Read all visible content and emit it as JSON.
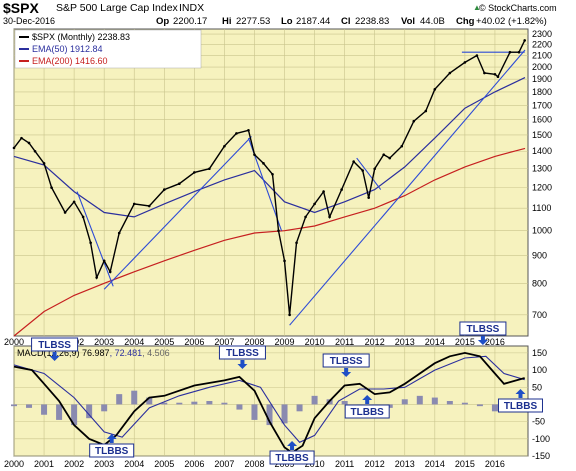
{
  "header": {
    "symbol": "$SPX",
    "name": "S&P 500 Large Cap Index",
    "exchange": "INDX",
    "date": "30-Dec-2016",
    "op_label": "Op",
    "op": "2200.17",
    "hi_label": "Hi",
    "hi": "2277.53",
    "lo_label": "Lo",
    "lo": "2187.44",
    "cl_label": "Cl",
    "cl": "2238.83",
    "vol_label": "Vol",
    "vol": "44.0B",
    "chg_label": "Chg",
    "chg": "+40.02 (+1.82%)",
    "watermark": "© StockCharts.com",
    "watermark_arrow": "▲"
  },
  "legend": [
    {
      "label": "$SPX (Monthly) 2238.83",
      "color": "#000000"
    },
    {
      "label": "EMA(50) 1912.84",
      "color": "#2b2f9e"
    },
    {
      "label": "EMA(200) 1416.60",
      "color": "#c62020"
    }
  ],
  "macd_label": {
    "prefix": "MACD",
    "params": "12,26,9",
    "macd": "76.987",
    "signal": "72.481",
    "hist": "4.506"
  },
  "colors": {
    "panel_bg": "#f6f2be",
    "price": "#000000",
    "ema50": "#2b2f9e",
    "ema200": "#c62020",
    "trendline": "#2d4bd6",
    "histogram": "#8a8ab0",
    "box_fill": "#ffffff",
    "box_border": "#1b2f8f",
    "box_text": "#1b2f8f",
    "arrow": "#1f4fc6"
  },
  "chart_data": [
    {
      "type": "line",
      "title": "S&P 500 Large Cap Index",
      "scale": "log",
      "ylim": [
        640,
        2350
      ],
      "x_range": [
        2000,
        2017.1
      ],
      "x_ticks": [
        "2000",
        "2001",
        "2002",
        "2003",
        "2004",
        "2005",
        "2006",
        "2007",
        "2008",
        "2009",
        "2010",
        "2011",
        "2012",
        "2013",
        "2014",
        "2015",
        "2016"
      ],
      "y_ticks": [
        700,
        800,
        900,
        1000,
        1100,
        1200,
        1300,
        1400,
        1500,
        1600,
        1700,
        1800,
        1900,
        2000,
        2100,
        2200,
        2300
      ],
      "y_tick_labels": [
        "700",
        "800",
        "900",
        "1000",
        "1100",
        "1200",
        "1300",
        "1400",
        "1500",
        "1600",
        "1700",
        "1800",
        "1900",
        "2000",
        "2100",
        "2200",
        "2300"
      ],
      "grid": true,
      "legend_position": "top-left",
      "series": [
        {
          "name": "$SPX (Monthly)",
          "x": [
            2000.0,
            2000.25,
            2000.5,
            2000.7,
            2001.0,
            2001.25,
            2001.7,
            2002.0,
            2002.3,
            2002.55,
            2002.75,
            2003.0,
            2003.2,
            2003.5,
            2004.0,
            2004.5,
            2005.0,
            2005.5,
            2006.0,
            2006.5,
            2007.0,
            2007.4,
            2007.8,
            2008.0,
            2008.3,
            2008.6,
            2008.8,
            2009.0,
            2009.17,
            2009.4,
            2009.7,
            2010.0,
            2010.3,
            2010.5,
            2010.9,
            2011.3,
            2011.6,
            2011.8,
            2012.0,
            2012.3,
            2012.5,
            2012.9,
            2013.3,
            2013.7,
            2014.0,
            2014.5,
            2015.0,
            2015.4,
            2015.65,
            2016.0,
            2016.1,
            2016.5,
            2016.8,
            2016.99
          ],
          "y": [
            1420,
            1480,
            1450,
            1400,
            1330,
            1200,
            1080,
            1130,
            1060,
            950,
            820,
            880,
            840,
            990,
            1120,
            1110,
            1190,
            1220,
            1280,
            1300,
            1430,
            1510,
            1530,
            1380,
            1330,
            1270,
            1000,
            880,
            700,
            950,
            1060,
            1120,
            1180,
            1060,
            1190,
            1340,
            1290,
            1150,
            1300,
            1380,
            1360,
            1430,
            1590,
            1660,
            1820,
            1950,
            2040,
            2100,
            1950,
            1940,
            1920,
            2130,
            2130,
            2239
          ]
        },
        {
          "name": "EMA(50)",
          "x": [
            2000.0,
            2001.0,
            2002.0,
            2003.0,
            2004.0,
            2005.0,
            2006.0,
            2007.0,
            2008.0,
            2009.0,
            2010.0,
            2011.0,
            2012.0,
            2013.0,
            2014.0,
            2015.0,
            2016.0,
            2017.0
          ],
          "y": [
            1370,
            1320,
            1180,
            1080,
            1060,
            1120,
            1180,
            1240,
            1290,
            1130,
            1080,
            1130,
            1190,
            1310,
            1480,
            1680,
            1800,
            1913
          ]
        },
        {
          "name": "EMA(200)",
          "x": [
            2000.0,
            2001.0,
            2002.0,
            2003.0,
            2004.0,
            2005.0,
            2006.0,
            2007.0,
            2008.0,
            2009.0,
            2010.0,
            2011.0,
            2012.0,
            2013.0,
            2014.0,
            2015.0,
            2016.0,
            2017.0
          ],
          "y": [
            640,
            710,
            760,
            800,
            840,
            880,
            920,
            960,
            990,
            1000,
            1020,
            1060,
            1100,
            1160,
            1240,
            1310,
            1370,
            1417
          ]
        }
      ],
      "trendlines": [
        {
          "x": [
            2002.1,
            2003.3
          ],
          "y": [
            1180,
            790
          ]
        },
        {
          "x": [
            2003.0,
            2007.9
          ],
          "y": [
            780,
            1490
          ]
        },
        {
          "x": [
            2007.8,
            2008.9
          ],
          "y": [
            1480,
            1000
          ]
        },
        {
          "x": [
            2009.17,
            2017.0
          ],
          "y": [
            670,
            2150
          ]
        },
        {
          "x": [
            2011.4,
            2012.2
          ],
          "y": [
            1360,
            1190
          ]
        },
        {
          "x": [
            2014.9,
            2016.99
          ],
          "y": [
            2130,
            2130
          ]
        }
      ]
    },
    {
      "type": "line",
      "title": "MACD(12,26,9)",
      "ylim": [
        -150,
        170
      ],
      "x_ticks": [
        "2000",
        "2001",
        "2002",
        "2003",
        "2004",
        "2005",
        "2006",
        "2007",
        "2008",
        "2009",
        "2010",
        "2011",
        "2012",
        "2013",
        "2014",
        "2015",
        "2016"
      ],
      "y_ticks": [
        -150,
        -100,
        -50,
        0,
        50,
        100,
        150
      ],
      "y_tick_labels": [
        "-150",
        "-100",
        "-50",
        "0",
        "50",
        "100",
        "150"
      ],
      "series": [
        {
          "name": "MACD",
          "x": [
            2000.0,
            2000.6,
            2001.0,
            2001.5,
            2002.0,
            2002.5,
            2003.0,
            2003.4,
            2004.0,
            2004.5,
            2005.0,
            2006.0,
            2007.0,
            2007.5,
            2008.0,
            2008.5,
            2009.0,
            2009.25,
            2009.6,
            2010.0,
            2010.5,
            2011.0,
            2011.5,
            2012.0,
            2012.5,
            2013.0,
            2014.0,
            2014.5,
            2015.0,
            2015.5,
            2016.0,
            2016.3,
            2016.99
          ],
          "y": [
            110,
            100,
            60,
            10,
            -60,
            -100,
            -118,
            -90,
            -20,
            20,
            25,
            55,
            70,
            80,
            40,
            -50,
            -125,
            -140,
            -120,
            -40,
            10,
            55,
            60,
            30,
            35,
            60,
            120,
            140,
            150,
            140,
            90,
            60,
            77
          ]
        },
        {
          "name": "Signal",
          "x": [
            2000.0,
            2001.0,
            2002.0,
            2003.0,
            2003.6,
            2004.5,
            2005.5,
            2006.5,
            2007.5,
            2008.2,
            2009.0,
            2009.5,
            2010.0,
            2010.8,
            2011.5,
            2012.3,
            2013.0,
            2014.0,
            2015.0,
            2015.7,
            2016.3,
            2016.99
          ],
          "y": [
            115,
            90,
            20,
            -80,
            -95,
            -10,
            25,
            50,
            70,
            50,
            -60,
            -110,
            -90,
            10,
            45,
            45,
            50,
            100,
            135,
            140,
            90,
            72
          ]
        },
        {
          "name": "Histogram",
          "type": "bar",
          "x": [
            2000.0,
            2000.5,
            2001.0,
            2001.5,
            2002.0,
            2002.5,
            2003.0,
            2003.5,
            2004.0,
            2004.5,
            2005.0,
            2005.5,
            2006.0,
            2006.5,
            2007.0,
            2007.5,
            2008.0,
            2008.5,
            2009.0,
            2009.5,
            2010.0,
            2010.5,
            2011.0,
            2011.5,
            2012.0,
            2012.5,
            2013.0,
            2013.5,
            2014.0,
            2014.5,
            2015.0,
            2015.5,
            2016.0,
            2016.5,
            2016.99
          ],
          "y": [
            -5,
            -10,
            -30,
            -45,
            -60,
            -40,
            -20,
            30,
            40,
            20,
            5,
            5,
            8,
            10,
            5,
            -15,
            -45,
            -60,
            -55,
            -20,
            25,
            15,
            10,
            -5,
            -15,
            -10,
            15,
            25,
            20,
            10,
            5,
            -5,
            -20,
            -10,
            5
          ]
        }
      ]
    }
  ],
  "annotations": [
    {
      "text": "TLBSS",
      "chart": 1,
      "x": 2001.35,
      "box_w": 46,
      "box_y": 338,
      "arrow": "down"
    },
    {
      "text": "TLBBS",
      "chart": 1,
      "x": 2003.25,
      "box_w": 44,
      "box_y": 444,
      "arrow": "up"
    },
    {
      "text": "TLBSS",
      "chart": 1,
      "x": 2007.6,
      "box_w": 46,
      "box_y": 346,
      "arrow": "down"
    },
    {
      "text": "TLBBS",
      "chart": 1,
      "x": 2009.25,
      "box_w": 44,
      "box_y": 451,
      "arrow": "up"
    },
    {
      "text": "TLBSS",
      "chart": 1,
      "x": 2011.05,
      "box_w": 46,
      "box_y": 354,
      "arrow": "down"
    },
    {
      "text": "TLBBS",
      "chart": 1,
      "x": 2011.75,
      "box_w": 44,
      "box_y": 405,
      "arrow": "up"
    },
    {
      "text": "TLBSS",
      "chart": 1,
      "x": 2015.6,
      "box_w": 46,
      "box_y": 322,
      "arrow": "down"
    },
    {
      "text": "TLBBS",
      "chart": 1,
      "x": 2016.85,
      "box_w": 44,
      "box_y": 399,
      "arrow": "up"
    }
  ]
}
